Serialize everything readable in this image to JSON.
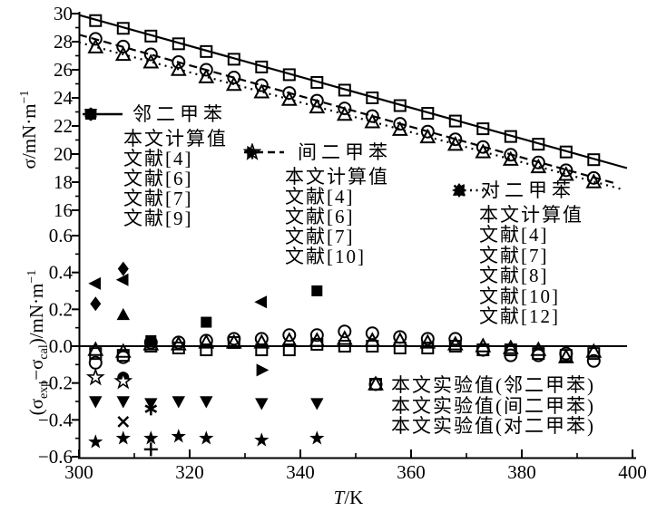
{
  "figure": {
    "xlabel": {
      "t": "T",
      "rest": "/K"
    },
    "ylabel_top": {
      "pre": "σ/mN·m",
      "sup": "−1"
    },
    "ylabel_bottom": {
      "p1": "(σ",
      "sub1": "exp",
      "p2": "−σ",
      "sub2": "cal",
      "p3": ")/mN·m",
      "sup": "−1"
    }
  },
  "colors": {
    "ink": "#000000",
    "background": "#ffffff"
  },
  "legends": {
    "oxylene": {
      "title": "邻二甲苯",
      "items": [
        {
          "marker": "line-solid",
          "label": "本文计算值"
        },
        {
          "marker": "asterisk",
          "label": "文献[4]"
        },
        {
          "marker": "triangle-down-filled",
          "label": "文献[6]"
        },
        {
          "marker": "circle-filled",
          "label": "文献[7]"
        },
        {
          "marker": "square-filled",
          "label": "文献[9]"
        }
      ]
    },
    "mxylene": {
      "title": "间二甲苯",
      "items": [
        {
          "marker": "line-dashed",
          "label": "本文计算值"
        },
        {
          "marker": "plus",
          "label": "文献[4]"
        },
        {
          "marker": "star-filled",
          "label": "文献[6]"
        },
        {
          "marker": "star-open",
          "label": "文献[7]"
        },
        {
          "marker": "triangle-right-filled",
          "label": "文献[10]"
        }
      ]
    },
    "pxylene": {
      "title": "对二甲苯",
      "items": [
        {
          "marker": "line-dotted",
          "label": "本文计算值"
        },
        {
          "marker": "vbar",
          "label": "文献[4]"
        },
        {
          "marker": "diamond-filled",
          "label": "文献[7]"
        },
        {
          "marker": "triangle-left-filled",
          "label": "文献[8]"
        },
        {
          "marker": "triangle-up-filled",
          "label": "文献[10]"
        },
        {
          "marker": "cross",
          "label": "文献[12]"
        }
      ]
    },
    "experimental": {
      "items": [
        {
          "marker": "square-open",
          "label": "本文实验值(邻二甲苯)"
        },
        {
          "marker": "circle-open",
          "label": "本文实验值(间二甲苯)"
        },
        {
          "marker": "triangle-open",
          "label": "本文实验值(对二甲苯)"
        }
      ]
    }
  },
  "chart_data": {
    "type": "line+scatter",
    "title": "",
    "xlabel": "T/K",
    "xlim": [
      300,
      400
    ],
    "x_major_ticks": [
      300,
      320,
      340,
      360,
      380,
      400
    ],
    "x_minor_ticks": [
      310,
      330,
      350,
      370,
      390
    ],
    "grid": false,
    "panels": [
      {
        "id": "sigma",
        "ylabel": "σ/mN·m−1",
        "ylim": [
          16,
          30
        ],
        "y_major_ticks": [
          30,
          28,
          26,
          24,
          22,
          20,
          18,
          16
        ],
        "y_minor_ticks": [
          29,
          27,
          25,
          23,
          21,
          19,
          17
        ],
        "lines": [
          {
            "name": "邻二甲苯 本文计算值",
            "style": "solid",
            "x": [
              300,
              399
            ],
            "y": [
              29.9,
              19.0
            ]
          },
          {
            "name": "间二甲苯 本文计算值",
            "style": "dashed",
            "x": [
              300,
              397
            ],
            "y": [
              28.5,
              17.9
            ]
          },
          {
            "name": "对二甲苯 本文计算值",
            "style": "dotted",
            "x": [
              300,
              398.5
            ],
            "y": [
              27.95,
              17.45
            ]
          }
        ],
        "series": [
          {
            "name": "本文实验值(邻二甲苯)",
            "marker": "square-open",
            "x": [
              303,
              308,
              313,
              318,
              323,
              328,
              333,
              338,
              343,
              348,
              353,
              358,
              363,
              368,
              373,
              378,
              383,
              388,
              393
            ],
            "y": [
              29.5,
              28.95,
              28.4,
              27.85,
              27.3,
              26.75,
              26.2,
              25.65,
              25.1,
              24.55,
              24.0,
              23.45,
              22.9,
              22.35,
              21.8,
              21.25,
              20.7,
              20.15,
              19.6
            ]
          },
          {
            "name": "本文实验值(间二甲苯)",
            "marker": "circle-open",
            "x": [
              303,
              308,
              313,
              318,
              323,
              328,
              333,
              338,
              343,
              348,
              353,
              358,
              363,
              368,
              373,
              378,
              383,
              388,
              393
            ],
            "y": [
              28.2,
              27.65,
              27.1,
              26.55,
              26.0,
              25.45,
              24.9,
              24.35,
              23.8,
              23.25,
              22.7,
              22.15,
              21.6,
              21.05,
              20.5,
              19.95,
              19.4,
              18.85,
              18.3
            ]
          },
          {
            "name": "本文实验值(对二甲苯)",
            "marker": "triangle-open",
            "x": [
              303,
              308,
              313,
              318,
              323,
              328,
              333,
              338,
              343,
              348,
              353,
              358,
              363,
              368,
              373,
              378,
              383,
              388,
              393
            ],
            "y": [
              27.6,
              27.07,
              26.53,
              26.0,
              25.47,
              24.93,
              24.4,
              23.87,
              23.33,
              22.8,
              22.27,
              21.73,
              21.2,
              20.67,
              20.13,
              19.6,
              19.07,
              18.53,
              18.0
            ]
          }
        ]
      },
      {
        "id": "deviation",
        "ylabel": "(σexp−σcal)/mN·m−1",
        "ylim": [
          -0.6,
          0.6
        ],
        "y_major_ticks": [
          0.6,
          0.4,
          0.2,
          0.0,
          -0.2,
          -0.4,
          -0.6
        ],
        "y_minor_ticks": [
          0.5,
          0.3,
          0.1,
          -0.1,
          -0.3,
          -0.5
        ],
        "zero_line": true,
        "series": [
          {
            "name": "邻二甲苯 文献[4]",
            "marker": "asterisk",
            "x": [
              313
            ],
            "y": [
              -0.34
            ]
          },
          {
            "name": "邻二甲苯 文献[6]",
            "marker": "triangle-down-filled",
            "x": [
              303,
              308,
              313,
              318,
              323,
              333,
              343
            ],
            "y": [
              -0.3,
              -0.3,
              -0.31,
              -0.3,
              -0.3,
              -0.31,
              -0.31
            ]
          },
          {
            "name": "邻二甲苯 文献[7]",
            "marker": "circle-filled",
            "x": [
              308
            ],
            "y": [
              -0.17
            ]
          },
          {
            "name": "间二甲苯 文献[7]",
            "marker": "star-open",
            "x": [
              303,
              308
            ],
            "y": [
              -0.17,
              -0.19
            ]
          },
          {
            "name": "邻二甲苯 文献[9]",
            "marker": "square-filled",
            "x": [
              313,
              323,
              343
            ],
            "y": [
              0.03,
              0.13,
              0.3
            ]
          },
          {
            "name": "间二甲苯 文献[4]",
            "marker": "plus",
            "x": [
              313
            ],
            "y": [
              -0.56
            ]
          },
          {
            "name": "间二甲苯 文献[6]",
            "marker": "star-filled",
            "x": [
              303,
              308,
              313,
              318,
              323,
              333,
              343
            ],
            "y": [
              -0.52,
              -0.5,
              -0.5,
              -0.49,
              -0.5,
              -0.51,
              -0.5
            ]
          },
          {
            "name": "间二甲苯 文献[10]",
            "marker": "triangle-right-filled",
            "x": [
              333
            ],
            "y": [
              -0.13
            ]
          },
          {
            "name": "对二甲苯 文献[7]",
            "marker": "diamond-filled",
            "x": [
              303,
              308
            ],
            "y": [
              0.23,
              0.42
            ]
          },
          {
            "name": "对二甲苯 文献[8]",
            "marker": "triangle-left-filled",
            "x": [
              303,
              308,
              333
            ],
            "y": [
              0.34,
              0.36,
              0.24
            ]
          },
          {
            "name": "对二甲苯 文献[10]",
            "marker": "triangle-up-filled",
            "x": [
              308
            ],
            "y": [
              0.17
            ]
          },
          {
            "name": "对二甲苯 文献[12]",
            "marker": "cross",
            "x": [
              308
            ],
            "y": [
              -0.41
            ]
          },
          {
            "name": "本文实验值(邻二甲苯)",
            "marker": "square-open",
            "x": [
              303,
              308,
              313,
              318,
              323,
              328,
              333,
              338,
              343,
              348,
              353,
              358,
              363,
              368,
              373,
              378,
              383,
              388,
              393
            ],
            "y": [
              -0.04,
              -0.05,
              0.0,
              -0.01,
              -0.02,
              0.02,
              -0.02,
              -0.02,
              0.01,
              0.0,
              0.0,
              -0.01,
              -0.01,
              0.0,
              -0.02,
              -0.02,
              -0.04,
              -0.05,
              -0.04
            ]
          },
          {
            "name": "本文实验值(间二甲苯)",
            "marker": "circle-open",
            "x": [
              303,
              308,
              313,
              318,
              323,
              328,
              333,
              338,
              343,
              348,
              353,
              358,
              363,
              368,
              373,
              378,
              383,
              388,
              393
            ],
            "y": [
              -0.09,
              -0.06,
              0.02,
              0.02,
              0.03,
              0.04,
              0.04,
              0.06,
              0.06,
              0.08,
              0.07,
              0.05,
              0.04,
              0.04,
              -0.02,
              -0.05,
              -0.05,
              -0.04,
              -0.08
            ]
          },
          {
            "name": "本文实验值(对二甲苯)",
            "marker": "triangle-open",
            "x": [
              303,
              308,
              313,
              318,
              323,
              328,
              333,
              338,
              343,
              348,
              353,
              358,
              363,
              368,
              373,
              378,
              383,
              388,
              393
            ],
            "y": [
              -0.02,
              -0.03,
              0.01,
              0.01,
              0.02,
              0.02,
              0.02,
              0.03,
              0.03,
              0.04,
              0.03,
              0.03,
              0.02,
              0.01,
              0.0,
              -0.01,
              -0.02,
              -0.06,
              -0.03
            ]
          }
        ]
      }
    ]
  }
}
